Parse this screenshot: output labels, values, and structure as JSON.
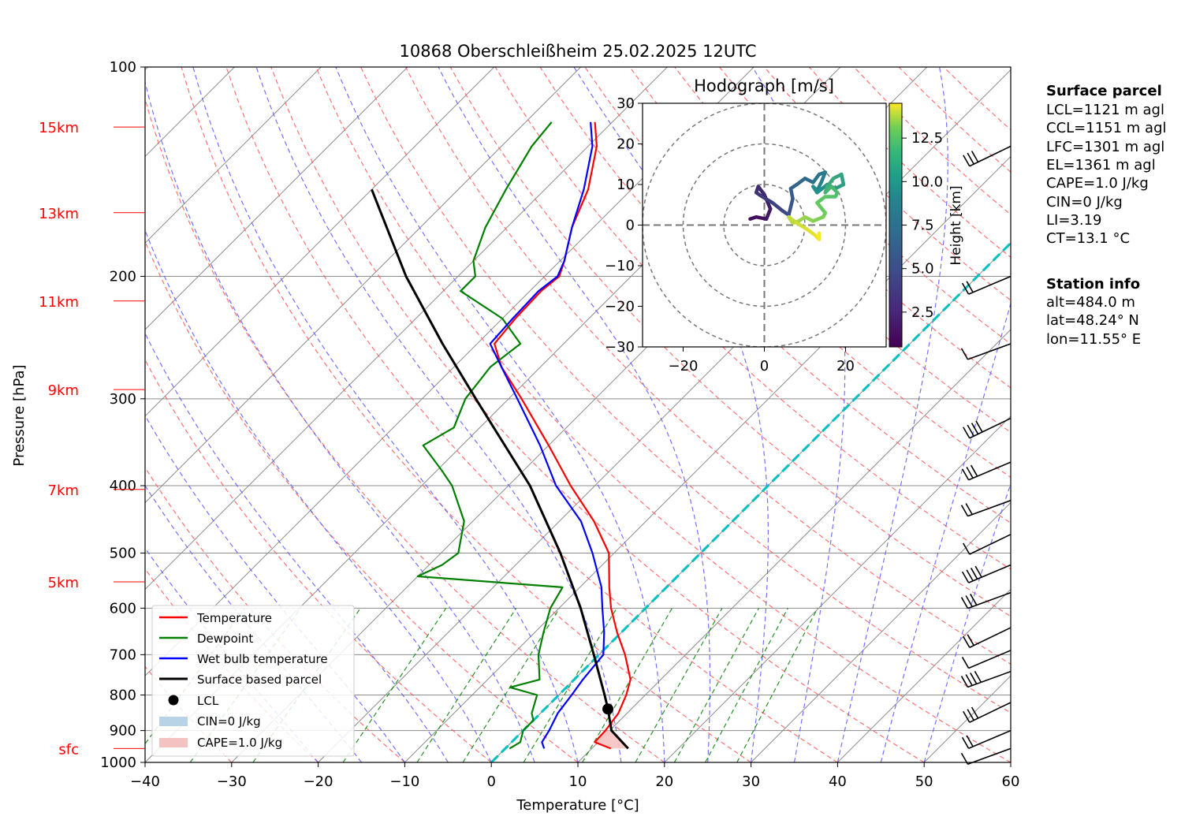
{
  "chart_data": {
    "type": "line",
    "title": "10868 Oberschleißheim 25.02.2025 12UTC",
    "xlabel": "Temperature [°C]",
    "ylabel": "Pressure [hPa]",
    "xlim": [
      -40,
      60
    ],
    "ylim": [
      1000,
      100
    ],
    "y_scale": "log",
    "skew": "45 degrees",
    "x_ticks": [
      "−40",
      "−30",
      "−20",
      "−10",
      "0",
      "10",
      "20",
      "30",
      "40",
      "50",
      "60"
    ],
    "y_ticks": [
      "100",
      "200",
      "300",
      "400",
      "500",
      "600",
      "700",
      "800",
      "900",
      "1000"
    ],
    "height_labels": [
      {
        "label": "15km",
        "p": 122
      },
      {
        "label": "13km",
        "p": 162
      },
      {
        "label": "11km",
        "p": 217
      },
      {
        "label": "9km",
        "p": 291
      },
      {
        "label": "7km",
        "p": 405
      },
      {
        "label": "5km",
        "p": 550
      },
      {
        "label": "sfc",
        "p": 955
      }
    ],
    "grid": true,
    "legend_position": "bottom-left",
    "series": [
      {
        "name": "Temperature",
        "color": "#ff0000",
        "p": [
          955,
          935,
          900,
          850,
          800,
          760,
          700,
          650,
          600,
          560,
          500,
          450,
          400,
          350,
          300,
          270,
          250,
          230,
          210,
          200,
          190,
          170,
          150,
          130,
          120
        ],
        "t": [
          12.2,
          9.6,
          9.5,
          9.0,
          7.8,
          6.5,
          3.0,
          -0.5,
          -4.0,
          -6.6,
          -10.6,
          -16.0,
          -22.8,
          -30.0,
          -38.5,
          -44.5,
          -48.0,
          -48.5,
          -48.7,
          -48.3,
          -49.5,
          -52.5,
          -55.0,
          -59.0,
          -62.0
        ]
      },
      {
        "name": "Dewpoint",
        "color": "#008000",
        "p": [
          955,
          935,
          900,
          870,
          850,
          800,
          780,
          760,
          700,
          650,
          600,
          560,
          540,
          520,
          500,
          450,
          400,
          380,
          350,
          330,
          300,
          270,
          250,
          230,
          210,
          200,
          190,
          170,
          150,
          130,
          120
        ],
        "t": [
          0.5,
          1.0,
          0.0,
          0.0,
          -1.0,
          -2.5,
          -6.5,
          -4.0,
          -7.0,
          -9.0,
          -11.0,
          -12.0,
          -30.0,
          -28.5,
          -28.0,
          -31.0,
          -36.5,
          -39.5,
          -44.5,
          -43.0,
          -45.0,
          -45.8,
          -45.0,
          -50.0,
          -58.0,
          -58.0,
          -60.0,
          -62.5,
          -64.5,
          -66.5,
          -67.0
        ]
      },
      {
        "name": "Wet bulb temperature",
        "color": "#0000ff",
        "p": [
          955,
          935,
          900,
          850,
          800,
          760,
          700,
          650,
          600,
          560,
          500,
          450,
          400,
          350,
          300,
          270,
          250,
          230,
          210,
          200,
          190,
          170,
          150,
          130,
          120
        ],
        "t": [
          4.5,
          3.5,
          3.0,
          2.0,
          1.5,
          1.0,
          0.5,
          -2.0,
          -5.0,
          -7.5,
          -12.5,
          -17.5,
          -24.5,
          -31.0,
          -39.0,
          -44.5,
          -48.5,
          -48.8,
          -49.0,
          -48.5,
          -49.5,
          -52.5,
          -55.5,
          -59.5,
          -62.5
        ]
      },
      {
        "name": "Surface based parcel",
        "color": "#000000",
        "p": [
          955,
          900,
          838,
          800,
          700,
          600,
          500,
          400,
          300,
          250,
          200,
          150
        ],
        "t": [
          14.2,
          10.2,
          7.3,
          5.3,
          -0.6,
          -7.5,
          -16.2,
          -27.5,
          -43.8,
          -54.0,
          -66.0,
          -80.0
        ]
      }
    ],
    "lcl": {
      "name": "LCL",
      "p": 838,
      "t": 7.3
    },
    "freezing_level_line": {
      "color": "#00c0c0",
      "t": 0
    },
    "cin_label": "CIN=0 J/kg",
    "cape_label": "CAPE=1.0 J/kg",
    "wind_barbs_pressures": [
      955,
      900,
      820,
      740,
      690,
      640,
      570,
      520,
      470,
      420,
      370,
      320,
      250,
      200,
      130
    ],
    "hodograph": {
      "title": "Hodograph [m/s]",
      "xlim": [
        -30,
        30
      ],
      "ylim": [
        -30,
        30
      ],
      "x_ticks": [
        "−20",
        "0",
        "20"
      ],
      "y_ticks": [
        "30",
        "20",
        "10",
        "0",
        "−10",
        "−20",
        "−30"
      ],
      "colorbar_label": "Height [km]",
      "colorbar_ticks": [
        "2.5",
        "5.0",
        "7.5",
        "10.0",
        "12.5"
      ],
      "colorbar_range": [
        0.5,
        14.5
      ],
      "u": [
        -3.5,
        -2.0,
        0.5,
        1.5,
        0.0,
        -1.5,
        -2.0,
        -0.5,
        2.0,
        4.5,
        6.0,
        6.5,
        7.0,
        6.5,
        8.0,
        10.0,
        12.0,
        13.5,
        15.0,
        14.0,
        13.0,
        12.0,
        13.0,
        15.5,
        17.5,
        19.5,
        19.0,
        17.0,
        15.5,
        15.0,
        16.5,
        18.0,
        17.5,
        15.0,
        13.0,
        15.0,
        14.5,
        12.0,
        10.0,
        8.5,
        7.0,
        6.0,
        8.0,
        10.5,
        12.5,
        13.5,
        13.5
      ],
      "v": [
        1.5,
        2.0,
        1.5,
        4.0,
        7.5,
        9.5,
        8.0,
        7.0,
        5.5,
        3.5,
        2.5,
        4.5,
        6.5,
        9.0,
        10.0,
        11.5,
        10.5,
        12.5,
        13.0,
        10.5,
        8.5,
        9.5,
        8.0,
        10.0,
        9.0,
        10.0,
        12.5,
        11.5,
        9.5,
        8.0,
        9.5,
        8.0,
        7.0,
        7.0,
        5.5,
        3.0,
        2.0,
        1.0,
        2.0,
        1.0,
        0.5,
        2.0,
        0.5,
        -1.0,
        -2.5,
        -3.5,
        -2.0
      ],
      "height_km": [
        0.6,
        0.9,
        1.2,
        1.5,
        1.8,
        2.1,
        2.4,
        2.7,
        3.0,
        3.3,
        3.6,
        3.9,
        4.2,
        4.5,
        4.8,
        5.1,
        5.4,
        5.7,
        6.0,
        6.3,
        6.6,
        6.9,
        7.2,
        7.5,
        7.8,
        8.1,
        8.4,
        8.7,
        9.0,
        9.3,
        9.6,
        9.9,
        10.2,
        10.5,
        10.8,
        11.1,
        11.4,
        11.7,
        12.0,
        12.3,
        12.6,
        12.9,
        13.2,
        13.5,
        13.8,
        14.1,
        14.4
      ]
    }
  },
  "surface_parcel": {
    "title": "Surface parcel",
    "lines": [
      "LCL=1121 m agl",
      "CCL=1151 m agl",
      "LFC=1301 m agl",
      "EL=1361 m agl",
      "CAPE=1.0 J/kg",
      "CIN=0 J/kg",
      "LI=3.19",
      "CT=13.1 °C"
    ]
  },
  "station_info": {
    "title": "Station info",
    "lines": [
      "alt=484.0 m",
      "lat=48.24° N",
      "lon=11.55° E"
    ]
  },
  "colors": {
    "temperature": "#ff0000",
    "dewpoint": "#008000",
    "wetbulb": "#0000ff",
    "parcel": "#000000",
    "freezing": "#00c0c0",
    "dry_adiabat": "#ff5a5a",
    "moist_adiabat": "#5a5aff",
    "mixing_ratio": "#008000",
    "isotherm": "#8c8c8c",
    "height_label": "#ff0000",
    "cin_fill": "#b9d3e6",
    "cape_fill": "#f5c2c2"
  }
}
